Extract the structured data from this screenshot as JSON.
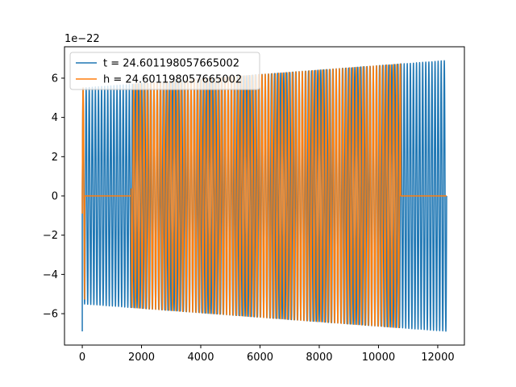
{
  "chart_data": {
    "type": "line",
    "title": "",
    "xlabel": "",
    "ylabel": "",
    "offset_text": "1e−22",
    "xlim": [
      -600,
      12900
    ],
    "ylim": [
      -7.6,
      7.6
    ],
    "scale": 1e-22,
    "x_ticks": [
      0,
      2000,
      4000,
      6000,
      8000,
      10000,
      12000
    ],
    "x_tick_labels": [
      "0",
      "2000",
      "4000",
      "6000",
      "8000",
      "10000",
      "12000"
    ],
    "y_ticks": [
      -6,
      -4,
      -2,
      0,
      2,
      4,
      6
    ],
    "y_tick_labels": [
      "−6",
      "−4",
      "−2",
      "0",
      "2",
      "4",
      "6"
    ],
    "grid": false,
    "legend_position": "upper-left",
    "series": [
      {
        "name": "t = 24.601198057665002",
        "color": "#1f77b4",
        "x_start": 0,
        "x_end": 12300,
        "cycles": 118,
        "amplitude_start": 5.5,
        "amplitude_end": 6.9,
        "initial_spike": -6.9,
        "flat_segments": []
      },
      {
        "name": "h = 24.601198057665002",
        "color": "#ff7f0e",
        "x_start": 0,
        "x_end": 12300,
        "cycles": 108,
        "amplitude_start": 5.5,
        "amplitude_end": 6.9,
        "initial_spike": -0.9,
        "flat_segments": [
          [
            80,
            1650
          ],
          [
            10750,
            12300
          ]
        ]
      }
    ]
  }
}
